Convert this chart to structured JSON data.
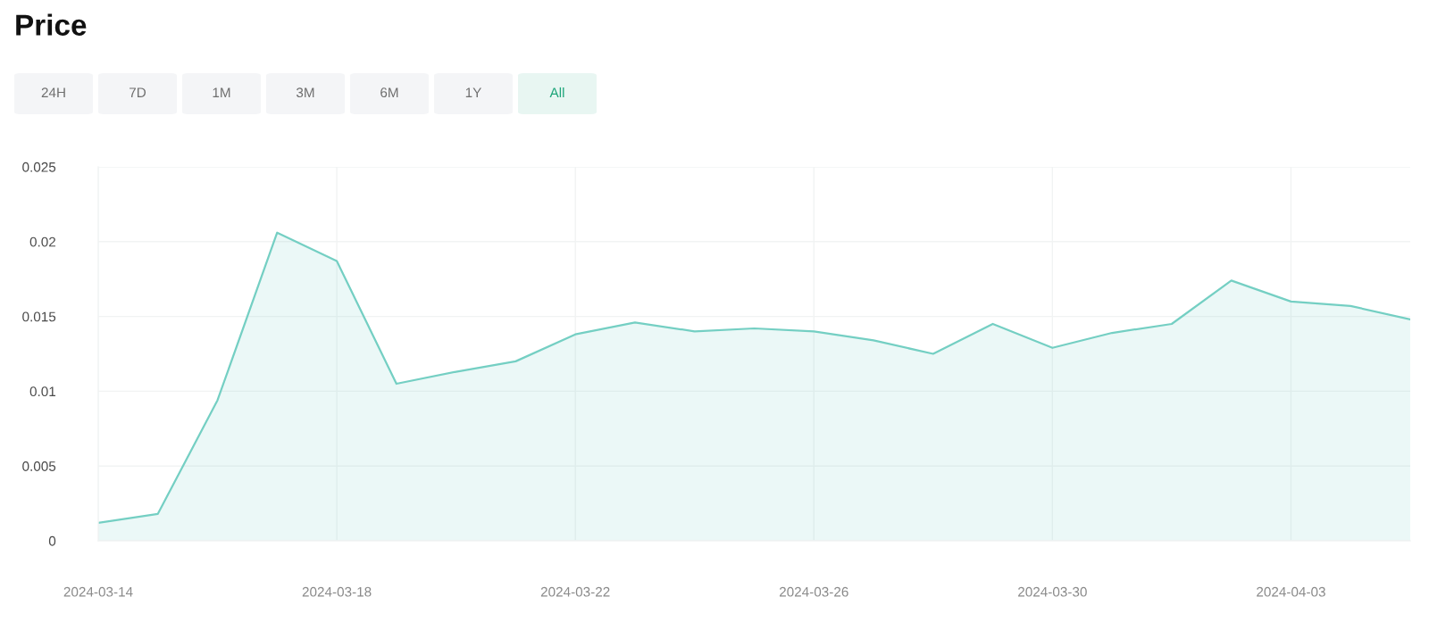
{
  "chart_data": {
    "type": "area",
    "title": "Price",
    "annotations": [
      "24H",
      "7D",
      "1M",
      "3M",
      "6M",
      "1Y",
      "All"
    ],
    "x": [
      "2024-03-14",
      "2024-03-15",
      "2024-03-16",
      "2024-03-17",
      "2024-03-18",
      "2024-03-19",
      "2024-03-20",
      "2024-03-21",
      "2024-03-22",
      "2024-03-23",
      "2024-03-24",
      "2024-03-25",
      "2024-03-26",
      "2024-03-27",
      "2024-03-28",
      "2024-03-29",
      "2024-03-30",
      "2024-03-31",
      "2024-04-01",
      "2024-04-02",
      "2024-04-03",
      "2024-04-04",
      "2024-04-05"
    ],
    "series": [
      {
        "color": "#74cfc3",
        "values": [
          0.0012,
          0.0018,
          0.0094,
          0.0206,
          0.0187,
          0.0105,
          0.0113,
          0.012,
          0.0138,
          0.0146,
          0.014,
          0.0142,
          0.014,
          0.0134,
          0.0125,
          0.0145,
          0.0129,
          0.0139,
          0.0145,
          0.0174,
          0.016,
          0.0157,
          0.0148
        ]
      }
    ],
    "xlim": [
      "2024-03-14",
      "2024-04-05"
    ],
    "xticks": [
      "2024-03-14",
      "2024-03-18",
      "2024-03-22",
      "2024-03-26",
      "2024-03-30",
      "2024-04-03"
    ],
    "ylim": [
      0,
      0.025
    ],
    "yticks": [
      0,
      0.005,
      0.01,
      0.015,
      0.02,
      0.025
    ],
    "grid": true
  }
}
